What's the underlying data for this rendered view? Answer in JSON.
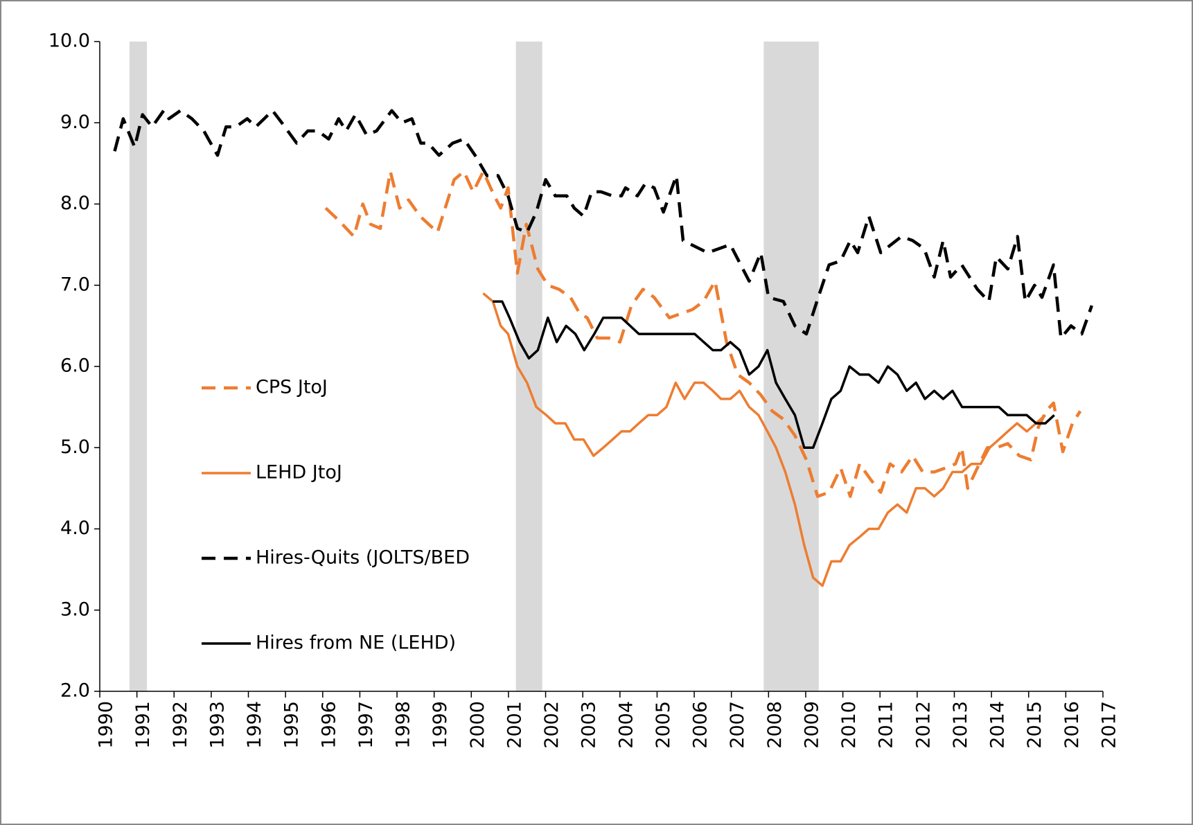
{
  "chart_data": {
    "type": "line",
    "xlim": [
      1990,
      2017
    ],
    "xticks": [
      1990,
      1991,
      1992,
      1993,
      1994,
      1995,
      1996,
      1997,
      1998,
      1999,
      2000,
      2001,
      2002,
      2003,
      2004,
      2005,
      2006,
      2007,
      2008,
      2009,
      2010,
      2011,
      2012,
      2013,
      2014,
      2015,
      2016,
      2017
    ],
    "ylim": [
      2,
      10
    ],
    "yticks": [
      {
        "value": 2,
        "label": "2.0"
      },
      {
        "value": 3,
        "label": "3.0"
      },
      {
        "value": 4,
        "label": "4.0"
      },
      {
        "value": 5,
        "label": "5.0"
      },
      {
        "value": 6,
        "label": "6.0"
      },
      {
        "value": 7,
        "label": "7.0"
      },
      {
        "value": 8,
        "label": "8.0"
      },
      {
        "value": 9,
        "label": "9.0"
      },
      {
        "value": 10,
        "label": "10.0"
      }
    ],
    "shading_color": "#d9d9d9",
    "shading": [
      [
        1990.8,
        1991.27
      ],
      [
        2001.2,
        2001.91
      ],
      [
        2007.87,
        2009.35
      ]
    ],
    "series": [
      {
        "name": "CPS JtoJ",
        "color": "#ed7d31",
        "dash": true,
        "x": [
          1996.08,
          1996.43,
          1996.84,
          1997.08,
          1997.29,
          1997.55,
          1997.82,
          1998.07,
          1998.31,
          1998.62,
          1999.09,
          1999.54,
          1999.8,
          2000.05,
          2000.32,
          2000.62,
          2000.79,
          2000.99,
          2001.24,
          2001.48,
          2001.79,
          2002.06,
          2002.36,
          2002.67,
          2002.92,
          2003.12,
          2003.39,
          2003.7,
          2004.0,
          2004.31,
          2004.62,
          2004.92,
          2005.33,
          2005.64,
          2005.95,
          2006.25,
          2006.56,
          2006.87,
          2007.17,
          2007.48,
          2007.79,
          2008.1,
          2008.4,
          2008.71,
          2009.02,
          2009.32,
          2009.63,
          2009.94,
          2010.2,
          2010.45,
          2010.76,
          2011.02,
          2011.27,
          2011.58,
          2011.88,
          2012.15,
          2012.46,
          2012.76,
          2013.03,
          2013.2,
          2013.36,
          2013.62,
          2013.89,
          2014.13,
          2014.44,
          2014.75,
          2015.06,
          2015.26,
          2015.47,
          2015.67,
          2015.92,
          2016.18,
          2016.39
        ],
        "values": [
          7.95,
          7.8,
          7.6,
          8.0,
          7.75,
          7.7,
          8.4,
          7.95,
          8.05,
          7.85,
          7.65,
          8.3,
          8.4,
          8.15,
          8.4,
          8.1,
          7.95,
          8.2,
          7.15,
          7.75,
          7.2,
          7.0,
          6.95,
          6.85,
          6.65,
          6.6,
          6.35,
          6.35,
          6.3,
          6.75,
          6.95,
          6.85,
          6.6,
          6.65,
          6.7,
          6.8,
          7.05,
          6.3,
          5.9,
          5.8,
          5.65,
          5.45,
          5.35,
          5.15,
          4.85,
          4.4,
          4.45,
          4.75,
          4.4,
          4.8,
          4.6,
          4.45,
          4.8,
          4.7,
          4.9,
          4.7,
          4.7,
          4.75,
          4.8,
          5.0,
          4.5,
          4.75,
          5.0,
          5.0,
          5.05,
          4.9,
          4.85,
          5.25,
          5.45,
          5.55,
          4.95,
          5.3,
          5.45
        ]
      },
      {
        "name": "LEHD JtoJ",
        "color": "#ed7d31",
        "dash": false,
        "x": [
          2000.32,
          2000.58,
          2000.79,
          2000.99,
          2001.24,
          2001.5,
          2001.75,
          2002.02,
          2002.26,
          2002.53,
          2002.77,
          2003.02,
          2003.29,
          2003.55,
          2003.8,
          2004.04,
          2004.27,
          2004.51,
          2004.76,
          2005.0,
          2005.25,
          2005.5,
          2005.74,
          2006.01,
          2006.25,
          2006.5,
          2006.72,
          2006.97,
          2007.22,
          2007.48,
          2007.73,
          2007.97,
          2008.2,
          2008.45,
          2008.71,
          2008.96,
          2009.2,
          2009.45,
          2009.69,
          2009.94,
          2010.18,
          2010.45,
          2010.7,
          2010.96,
          2011.21,
          2011.47,
          2011.72,
          2011.97,
          2012.21,
          2012.46,
          2012.7,
          2012.95,
          2013.21,
          2013.46,
          2013.71,
          2013.95,
          2014.2,
          2014.44,
          2014.69,
          2014.95,
          2015.2,
          2015.45
        ],
        "values": [
          6.9,
          6.8,
          6.5,
          6.4,
          6.0,
          5.8,
          5.5,
          5.4,
          5.3,
          5.3,
          5.1,
          5.1,
          4.9,
          5.0,
          5.1,
          5.2,
          5.2,
          5.3,
          5.4,
          5.4,
          5.5,
          5.8,
          5.6,
          5.8,
          5.8,
          5.7,
          5.6,
          5.6,
          5.7,
          5.5,
          5.4,
          5.2,
          5.0,
          4.7,
          4.3,
          3.8,
          3.4,
          3.3,
          3.6,
          3.6,
          3.8,
          3.9,
          4.0,
          4.0,
          4.2,
          4.3,
          4.2,
          4.5,
          4.5,
          4.4,
          4.5,
          4.7,
          4.7,
          4.8,
          4.8,
          5.0,
          5.1,
          5.2,
          5.3,
          5.2,
          5.3,
          5.4
        ]
      },
      {
        "name": "Hires-Quits (JOLTS/BED",
        "color": "#000000",
        "dash": true,
        "x": [
          1990.4,
          1990.63,
          1990.94,
          1991.15,
          1991.41,
          1991.72,
          1991.86,
          1992.17,
          1992.48,
          1992.8,
          1993.17,
          1993.4,
          1993.66,
          1993.97,
          1994.2,
          1994.65,
          1994.9,
          1995.3,
          1995.6,
          1995.87,
          1996.16,
          1996.43,
          1996.63,
          1996.88,
          1997.18,
          1997.45,
          1997.86,
          1998.13,
          1998.4,
          1998.64,
          1998.84,
          1999.13,
          1999.5,
          1999.8,
          2000.1,
          2000.42,
          2000.72,
          2000.99,
          2001.24,
          2001.5,
          2001.75,
          2002.0,
          2002.26,
          2002.57,
          2002.77,
          2003.02,
          2003.24,
          2003.49,
          2003.8,
          2004.04,
          2004.15,
          2004.47,
          2004.68,
          2004.92,
          2005.17,
          2005.52,
          2005.7,
          2006.36,
          2006.97,
          2007.48,
          2007.79,
          2008.0,
          2008.4,
          2008.71,
          2009.02,
          2009.3,
          2009.63,
          2009.94,
          2010.2,
          2010.4,
          2010.7,
          2011.02,
          2011.58,
          2011.88,
          2012.19,
          2012.46,
          2012.7,
          2012.9,
          2013.2,
          2013.62,
          2013.93,
          2014.13,
          2014.44,
          2014.7,
          2014.91,
          2015.16,
          2015.36,
          2015.67,
          2015.87,
          2016.14,
          2016.43,
          2016.7
        ],
        "values": [
          8.65,
          9.05,
          8.7,
          9.1,
          8.95,
          9.15,
          9.05,
          9.15,
          9.05,
          8.9,
          8.6,
          8.95,
          8.95,
          9.05,
          8.95,
          9.15,
          9.0,
          8.75,
          8.9,
          8.9,
          8.8,
          9.05,
          8.9,
          9.1,
          8.85,
          8.9,
          9.15,
          9.0,
          9.05,
          8.75,
          8.75,
          8.6,
          8.75,
          8.8,
          8.6,
          8.35,
          8.35,
          8.1,
          7.7,
          7.65,
          7.9,
          8.3,
          8.1,
          8.1,
          7.95,
          7.85,
          8.15,
          8.15,
          8.1,
          8.1,
          8.2,
          8.1,
          8.25,
          8.2,
          7.9,
          8.35,
          7.55,
          7.4,
          7.5,
          7.05,
          7.4,
          6.85,
          6.8,
          6.5,
          6.4,
          6.8,
          7.25,
          7.3,
          7.55,
          7.4,
          7.85,
          7.4,
          7.6,
          7.55,
          7.45,
          7.1,
          7.55,
          7.1,
          7.25,
          6.95,
          6.8,
          7.35,
          7.2,
          7.6,
          6.8,
          7.0,
          6.85,
          7.25,
          6.35,
          6.5,
          6.4,
          6.75
        ]
      },
      {
        "name": "Hires from NE (LEHD)",
        "color": "#000000",
        "dash": false,
        "x": [
          2000.58,
          2000.83,
          2001.03,
          2001.3,
          2001.55,
          2001.79,
          2002.06,
          2002.3,
          2002.55,
          2002.8,
          2003.04,
          2003.31,
          2003.55,
          2004.04,
          2004.51,
          2006.01,
          2006.5,
          2006.72,
          2006.97,
          2007.22,
          2007.48,
          2007.73,
          2007.97,
          2008.2,
          2008.45,
          2008.71,
          2008.96,
          2009.2,
          2009.45,
          2009.69,
          2009.94,
          2010.18,
          2010.45,
          2010.7,
          2010.96,
          2011.21,
          2011.47,
          2011.72,
          2011.97,
          2012.21,
          2012.46,
          2012.7,
          2012.95,
          2013.21,
          2014.2,
          2014.44,
          2014.95,
          2015.2,
          2015.45,
          2015.69
        ],
        "values": [
          6.8,
          6.8,
          6.6,
          6.3,
          6.1,
          6.2,
          6.6,
          6.3,
          6.5,
          6.4,
          6.2,
          6.4,
          6.6,
          6.6,
          6.4,
          6.4,
          6.2,
          6.2,
          6.3,
          6.2,
          5.9,
          6.0,
          6.2,
          5.8,
          5.6,
          5.4,
          5.0,
          5.0,
          5.3,
          5.6,
          5.7,
          6.0,
          5.9,
          5.9,
          5.8,
          6.0,
          5.9,
          5.7,
          5.8,
          5.6,
          5.7,
          5.6,
          5.7,
          5.5,
          5.5,
          5.4,
          5.4,
          5.3,
          5.3,
          5.4
        ]
      }
    ]
  }
}
